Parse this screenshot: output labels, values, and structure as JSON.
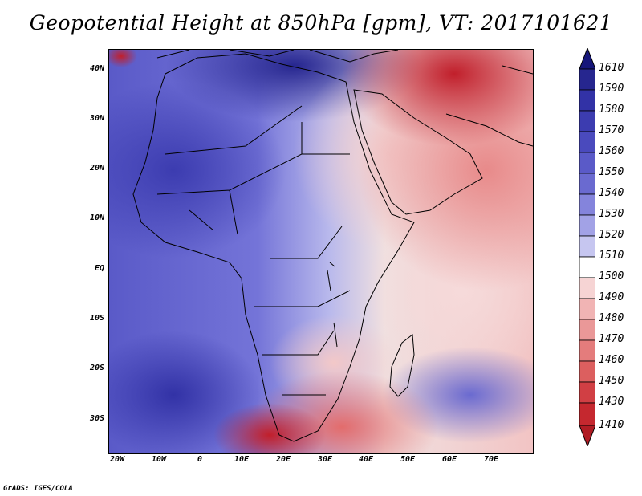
{
  "title": "Geopotential Height at 850hPa [gpm], VT: 2017101621",
  "credit": "GrADS: IGES/COLA",
  "lat_ticks": [
    "40N",
    "30N",
    "20N",
    "10N",
    "EQ",
    "10S",
    "20S",
    "30S"
  ],
  "lon_ticks": [
    "20W",
    "10W",
    "0",
    "10E",
    "20E",
    "30E",
    "40E",
    "50E",
    "60E",
    "70E"
  ],
  "colorbar": {
    "labels": [
      "1610",
      "1590",
      "1580",
      "1570",
      "1560",
      "1550",
      "1540",
      "1530",
      "1520",
      "1510",
      "1500",
      "1490",
      "1480",
      "1470",
      "1460",
      "1450",
      "1430",
      "1410"
    ],
    "colors": [
      "#16167a",
      "#26268f",
      "#3232a6",
      "#3c3cb0",
      "#4a4abd",
      "#5a5ac8",
      "#6a6ad0",
      "#8484dc",
      "#a2a2e6",
      "#c6c6f0",
      "#ffffff",
      "#f6d4d4",
      "#f1b4b4",
      "#ea9898",
      "#e47c7c",
      "#dc5f5f",
      "#d13f44",
      "#b01c24"
    ]
  }
}
